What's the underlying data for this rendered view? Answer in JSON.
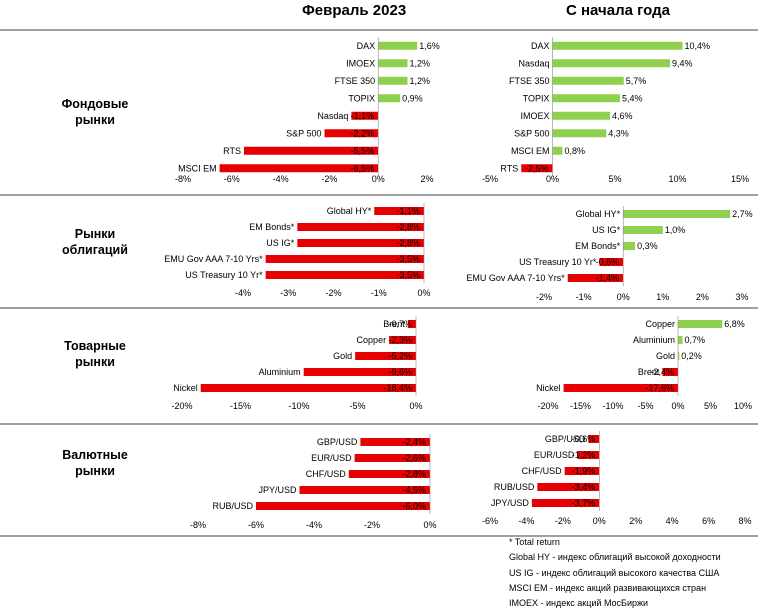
{
  "headers": {
    "left": "Февраль 2023",
    "right": "С начала года"
  },
  "colors": {
    "negative": "#e60000",
    "positive": "#8fd14f",
    "separator": "#000000"
  },
  "sections": [
    {
      "label_line1": "Фондовые",
      "label_line2": "рынки"
    },
    {
      "label_line1": "Рынки",
      "label_line2": "облигаций"
    },
    {
      "label_line1": "Товарные",
      "label_line2": "рынки"
    },
    {
      "label_line1": "Валютные",
      "label_line2": "рынки"
    }
  ],
  "notes": [
    "* Total return",
    "Global HY - индекс облигаций высокой доходности",
    "US IG - индекс облигаций высокого качества США",
    "MSCI EM - индекс акций развивающихся стран",
    "IMOEX - индекс акций МосБиржи"
  ],
  "chart_data": [
    {
      "type": "bar",
      "orientation": "horizontal",
      "group": "Фондовые рынки",
      "period": "Февраль 2023",
      "categories": [
        "DAX",
        "IMOEX",
        "FTSE 350",
        "TOPIX",
        "Nasdaq",
        "S&P 500",
        "RTS",
        "MSCI EM"
      ],
      "values": [
        1.6,
        1.2,
        1.2,
        0.9,
        -1.1,
        -2.2,
        -5.5,
        -6.5
      ],
      "labels": [
        "1,6%",
        "1,2%",
        "1,2%",
        "0,9%",
        "-1,1%",
        "-2,2%",
        "-5,5%",
        "-6,5%"
      ],
      "xlim": [
        -8,
        2
      ],
      "ticks": [
        -8,
        -6,
        -4,
        -2,
        0,
        2
      ],
      "tick_labels": [
        "-8%",
        "-6%",
        "-4%",
        "-2%",
        "0%",
        "2%"
      ]
    },
    {
      "type": "bar",
      "orientation": "horizontal",
      "group": "Фондовые рынки",
      "period": "С начала года",
      "categories": [
        "DAX",
        "Nasdaq",
        "FTSE 350",
        "TOPIX",
        "IMOEX",
        "S&P 500",
        "MSCI EM",
        "RTS"
      ],
      "values": [
        10.4,
        9.4,
        5.7,
        5.4,
        4.6,
        4.3,
        0.8,
        -2.5
      ],
      "labels": [
        "10,4%",
        "9,4%",
        "5,7%",
        "5,4%",
        "4,6%",
        "4,3%",
        "0,8%",
        "-2,5%"
      ],
      "xlim": [
        -5,
        15
      ],
      "ticks": [
        -5,
        0,
        5,
        10,
        15
      ],
      "tick_labels": [
        "-5%",
        "0%",
        "5%",
        "10%",
        "15%"
      ]
    },
    {
      "type": "bar",
      "orientation": "horizontal",
      "group": "Рынки облигаций",
      "period": "Февраль 2023",
      "categories": [
        "Global HY*",
        "EM Bonds*",
        "US IG*",
        "EMU Gov AAA 7-10 Yrs*",
        "US Treasury 10 Yr*"
      ],
      "values": [
        -1.1,
        -2.8,
        -2.8,
        -3.5,
        -3.5
      ],
      "labels": [
        "-1,1%",
        "-2,8%",
        "-2,8%",
        "-3,5%",
        "-3,5%"
      ],
      "xlim": [
        -4,
        0
      ],
      "ticks": [
        -4,
        -3,
        -2,
        -1,
        0
      ],
      "tick_labels": [
        "-4%",
        "-3%",
        "-2%",
        "-1%",
        "0%"
      ]
    },
    {
      "type": "bar",
      "orientation": "horizontal",
      "group": "Рынки облигаций",
      "period": "С начала года",
      "categories": [
        "Global HY*",
        "US IG*",
        "EM Bonds*",
        "US Treasury 10 Yr*",
        "EMU Gov AAA 7-10 Yrs*"
      ],
      "values": [
        2.7,
        1.0,
        0.3,
        -0.6,
        -1.4
      ],
      "labels": [
        "2,7%",
        "1,0%",
        "0,3%",
        "-0,6%",
        "-1,4%"
      ],
      "xlim": [
        -2,
        3
      ],
      "ticks": [
        -2,
        -1,
        0,
        1,
        2,
        3
      ],
      "tick_labels": [
        "-2%",
        "-1%",
        "0%",
        "1%",
        "2%",
        "3%"
      ]
    },
    {
      "type": "bar",
      "orientation": "horizontal",
      "group": "Товарные рынки",
      "period": "Февраль 2023",
      "categories": [
        "Brent",
        "Copper",
        "Gold",
        "Aluminium",
        "Nickel"
      ],
      "values": [
        -0.7,
        -2.3,
        -5.2,
        -9.6,
        -18.4
      ],
      "labels": [
        "-0,7%",
        "-2,3%",
        "-5,2%",
        "-9,6%",
        "-18,4%"
      ],
      "xlim": [
        -20,
        0
      ],
      "ticks": [
        -20,
        -15,
        -10,
        -5,
        0
      ],
      "tick_labels": [
        "-20%",
        "-15%",
        "-10%",
        "-5%",
        "0%"
      ]
    },
    {
      "type": "bar",
      "orientation": "horizontal",
      "group": "Товарные рынки",
      "period": "С начала года",
      "categories": [
        "Copper",
        "Aluminium",
        "Gold",
        "Brent",
        "Nickel"
      ],
      "values": [
        6.8,
        0.7,
        0.2,
        -2.4,
        -17.6
      ],
      "labels": [
        "6,8%",
        "0,7%",
        "0,2%",
        "-2,4%",
        "-17,6%"
      ],
      "xlim": [
        -20,
        10
      ],
      "ticks": [
        -20,
        -15,
        -10,
        -5,
        0,
        5,
        10
      ],
      "tick_labels": [
        "-20%",
        "-15%",
        "-10%",
        "-5%",
        "0%",
        "5%",
        "10%"
      ]
    },
    {
      "type": "bar",
      "orientation": "horizontal",
      "group": "Валютные рынки",
      "period": "Февраль 2023",
      "categories": [
        "GBP/USD",
        "EUR/USD",
        "CHF/USD",
        "JPY/USD",
        "RUB/USD"
      ],
      "values": [
        -2.4,
        -2.6,
        -2.8,
        -4.5,
        -6.0
      ],
      "labels": [
        "-2,4%",
        "-2,6%",
        "-2,8%",
        "-4,5%",
        "-6,0%"
      ],
      "xlim": [
        -8,
        0
      ],
      "ticks": [
        -8,
        -6,
        -4,
        -2,
        0
      ],
      "tick_labels": [
        "-8%",
        "-6%",
        "-4%",
        "-2%",
        "0%"
      ]
    },
    {
      "type": "bar",
      "orientation": "horizontal",
      "group": "Валютные рынки",
      "period": "С начала года",
      "categories": [
        "GBP/USD",
        "EUR/USD",
        "CHF/USD",
        "RUB/USD",
        "JPY/USD"
      ],
      "values": [
        -0.6,
        -1.2,
        -1.9,
        -3.4,
        -3.7
      ],
      "labels": [
        "-0,6%",
        "-1,2%",
        "-1,9%",
        "-3,4%",
        "-3,7%"
      ],
      "xlim": [
        -6,
        8
      ],
      "ticks": [
        -6,
        -4,
        -2,
        0,
        2,
        4,
        6,
        8
      ],
      "tick_labels": [
        "-6%",
        "-4%",
        "-2%",
        "0%",
        "2%",
        "4%",
        "6%",
        "8%"
      ]
    }
  ]
}
